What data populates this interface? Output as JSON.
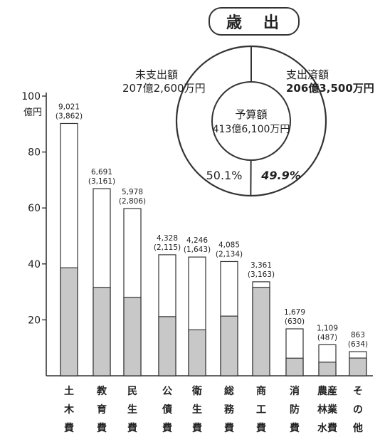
{
  "title": "歳　出",
  "chart_data": [
    {
      "type": "bar",
      "yunit_label": [
        "億円"
      ],
      "ylim": [
        0,
        100
      ],
      "yticks": [
        20,
        40,
        60,
        80,
        100
      ],
      "categories": [
        "土木費",
        "教育費",
        "民生費",
        "公債費",
        "衛生費",
        "総務費",
        "商工費",
        "消防費",
        "農林水産業費",
        "その他"
      ],
      "category_labels": [
        [
          "土",
          "木",
          "費"
        ],
        [
          "教",
          "育",
          "費"
        ],
        [
          "民",
          "生",
          "費"
        ],
        [
          "公",
          "債",
          "費"
        ],
        [
          "衛",
          "生",
          "費"
        ],
        [
          "総",
          "務",
          "費"
        ],
        [
          "商",
          "工",
          "費"
        ],
        [
          "消",
          "防",
          "費"
        ],
        [
          "農産",
          "林業",
          "水費"
        ],
        [
          "そ",
          "の",
          "他"
        ]
      ],
      "series": [
        {
          "values": [
            90.21,
            66.91,
            59.78,
            43.28,
            42.46,
            40.85,
            33.61,
            16.79,
            11.09,
            8.63
          ]
        },
        {
          "values": [
            38.62,
            31.61,
            28.06,
            21.15,
            16.43,
            21.34,
            31.63,
            6.3,
            4.87,
            6.34
          ]
        }
      ],
      "value_labels": [
        "9,021",
        "6,691",
        "5,978",
        "4,328",
        "4,246",
        "4,085",
        "3,361",
        "1,679",
        "1,109",
        "863"
      ],
      "sub_labels": [
        "(3,862)",
        "(3,161)",
        "(2,806)",
        "(2,115)",
        "(1,643)",
        "(2,134)",
        "(3,163)",
        "(630)",
        "(487)",
        "(634)"
      ],
      "colors": {
        "total": "#ffffff",
        "spent": "#c8c8c8",
        "stroke": "#333333"
      }
    },
    {
      "type": "pie",
      "center_label": [
        "予算額",
        "413億6,100万円"
      ],
      "slices": [
        {
          "label": [
            "未支出額",
            "207億2,600万円"
          ],
          "value": 50.1,
          "pct_label": "50.1%"
        },
        {
          "label": [
            "支出済額",
            "206億3,500万円"
          ],
          "value": 49.9,
          "pct_label": "49.9%"
        }
      ]
    }
  ]
}
